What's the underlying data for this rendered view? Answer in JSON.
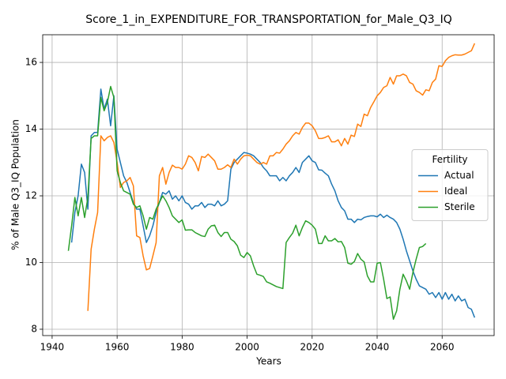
{
  "chart_data": {
    "type": "line",
    "title": "Score_1_in_EXPENDITURE_FOR_TRANSPORTATION_for_Male_Q3_IQ",
    "x_label": "Years",
    "y_label": "% of Male Q3_IQ Population",
    "legend_title": "Fertility",
    "legend_position": "center right",
    "grid": true,
    "xlim": [
      1937.1,
      2076
    ],
    "ylim": [
      7.81,
      16.83
    ],
    "xticks": [
      1940,
      1960,
      1980,
      2000,
      2020,
      2040,
      2060
    ],
    "yticks": [
      8,
      10,
      12,
      14,
      16
    ],
    "x": [
      1945,
      1946,
      1947,
      1948,
      1949,
      1950,
      1951,
      1952,
      1953,
      1954,
      1955,
      1956,
      1957,
      1958,
      1959,
      1960,
      1961,
      1962,
      1963,
      1964,
      1965,
      1966,
      1967,
      1968,
      1969,
      1970,
      1971,
      1972,
      1973,
      1974,
      1975,
      1976,
      1977,
      1978,
      1979,
      1980,
      1981,
      1982,
      1983,
      1984,
      1985,
      1986,
      1987,
      1988,
      1989,
      1990,
      1991,
      1992,
      1993,
      1994,
      1995,
      1996,
      1997,
      1998,
      1999,
      2000,
      2001,
      2002,
      2003,
      2004,
      2005,
      2006,
      2007,
      2008,
      2009,
      2010,
      2011,
      2012,
      2013,
      2014,
      2015,
      2016,
      2017,
      2018,
      2019,
      2020,
      2021,
      2022,
      2023,
      2024,
      2025,
      2026,
      2027,
      2028,
      2029,
      2030,
      2031,
      2032,
      2033,
      2034,
      2035,
      2036,
      2037,
      2038,
      2039,
      2040,
      2041,
      2042,
      2043,
      2044,
      2045,
      2046,
      2047,
      2048,
      2049,
      2050,
      2051,
      2052,
      2053,
      2054,
      2055,
      2056,
      2057,
      2058,
      2059,
      2060,
      2061,
      2062,
      2063,
      2064,
      2065,
      2066,
      2067,
      2068,
      2069,
      2070
    ],
    "series": [
      {
        "name": "Actual",
        "color": "#1f77b4",
        "values": [
          null,
          10.6,
          11.5,
          12.0,
          12.95,
          12.7,
          11.6,
          13.8,
          13.9,
          13.9,
          15.2,
          14.6,
          14.9,
          14.1,
          15.0,
          13.4,
          13.0,
          12.6,
          12.4,
          12.1,
          11.8,
          11.6,
          11.6,
          11.1,
          10.6,
          10.8,
          11.1,
          11.5,
          11.8,
          12.1,
          12.05,
          12.15,
          11.9,
          12.0,
          11.85,
          12.0,
          11.8,
          11.75,
          11.6,
          11.7,
          11.7,
          11.8,
          11.65,
          11.75,
          11.75,
          11.7,
          11.85,
          11.7,
          11.75,
          11.85,
          12.8,
          13.0,
          13.1,
          13.2,
          13.3,
          13.28,
          13.25,
          13.2,
          13.1,
          13.0,
          12.85,
          12.75,
          12.6,
          12.6,
          12.6,
          12.45,
          12.55,
          12.45,
          12.6,
          12.7,
          12.85,
          12.7,
          13.0,
          13.1,
          13.2,
          13.05,
          13.0,
          12.78,
          12.77,
          12.68,
          12.6,
          12.35,
          12.15,
          11.85,
          11.65,
          11.55,
          11.3,
          11.3,
          11.2,
          11.3,
          11.28,
          11.35,
          11.38,
          11.4,
          11.4,
          11.37,
          11.45,
          11.35,
          11.42,
          11.35,
          11.3,
          11.2,
          11.0,
          10.7,
          10.35,
          10.05,
          9.75,
          9.5,
          9.3,
          9.25,
          9.2,
          9.05,
          9.1,
          8.95,
          9.1,
          8.9,
          9.1,
          8.9,
          9.05,
          8.85,
          9.0,
          8.85,
          8.9,
          8.65,
          8.6,
          8.35
        ]
      },
      {
        "name": "Ideal",
        "color": "#ff7f0e",
        "values": [
          null,
          null,
          null,
          null,
          null,
          null,
          8.55,
          10.4,
          11.0,
          11.5,
          13.8,
          13.65,
          13.75,
          13.8,
          13.6,
          13.0,
          12.25,
          12.4,
          12.45,
          12.55,
          12.3,
          10.8,
          10.75,
          10.2,
          9.78,
          9.82,
          10.2,
          10.6,
          12.6,
          12.85,
          12.35,
          12.7,
          12.92,
          12.85,
          12.85,
          12.8,
          12.95,
          13.2,
          13.15,
          13.0,
          12.75,
          13.18,
          13.15,
          13.25,
          13.15,
          13.05,
          12.8,
          12.8,
          12.85,
          12.93,
          12.85,
          13.1,
          12.95,
          13.1,
          13.2,
          13.22,
          13.2,
          13.1,
          13.0,
          12.95,
          13.0,
          12.95,
          13.2,
          13.2,
          13.3,
          13.28,
          13.4,
          13.55,
          13.65,
          13.8,
          13.9,
          13.85,
          14.05,
          14.18,
          14.18,
          14.1,
          13.95,
          13.72,
          13.72,
          13.75,
          13.8,
          13.62,
          13.62,
          13.68,
          13.5,
          13.72,
          13.55,
          13.82,
          13.78,
          14.15,
          14.08,
          14.45,
          14.4,
          14.65,
          14.82,
          15.0,
          15.1,
          15.25,
          15.3,
          15.55,
          15.35,
          15.6,
          15.6,
          15.65,
          15.6,
          15.4,
          15.35,
          15.15,
          15.1,
          15.02,
          15.18,
          15.15,
          15.4,
          15.5,
          15.9,
          15.88,
          16.05,
          16.15,
          16.2,
          16.23,
          16.22,
          16.22,
          16.25,
          16.3,
          16.35,
          16.57
        ]
      },
      {
        "name": "Sterile",
        "color": "#2ca02c",
        "values": [
          10.35,
          11.1,
          11.95,
          11.4,
          11.95,
          11.35,
          11.95,
          13.72,
          13.8,
          13.8,
          14.95,
          14.55,
          14.8,
          15.28,
          14.95,
          12.75,
          12.4,
          12.15,
          12.1,
          12.05,
          11.75,
          11.65,
          11.7,
          11.4,
          11.0,
          11.35,
          11.3,
          11.6,
          11.8,
          12.0,
          11.85,
          11.65,
          11.4,
          11.3,
          11.2,
          11.28,
          10.97,
          10.98,
          10.98,
          10.9,
          10.85,
          10.8,
          10.78,
          11.0,
          11.1,
          11.12,
          10.9,
          10.78,
          10.9,
          10.9,
          10.7,
          10.63,
          10.5,
          10.22,
          10.15,
          10.3,
          10.2,
          9.9,
          9.65,
          9.62,
          9.58,
          9.42,
          9.38,
          9.33,
          9.28,
          9.25,
          9.22,
          10.6,
          10.75,
          10.88,
          11.12,
          10.8,
          11.05,
          11.25,
          11.2,
          11.12,
          11.0,
          10.57,
          10.57,
          10.8,
          10.65,
          10.65,
          10.72,
          10.62,
          10.63,
          10.45,
          9.98,
          9.95,
          10.03,
          10.27,
          10.1,
          10.02,
          9.6,
          9.42,
          9.42,
          9.98,
          10.0,
          9.5,
          8.92,
          8.97,
          8.3,
          8.55,
          9.2,
          9.65,
          9.45,
          9.2,
          9.7,
          10.1,
          10.45,
          10.48,
          10.57,
          null,
          null,
          null,
          null,
          null,
          null,
          null,
          null,
          null,
          null,
          null,
          null,
          null,
          null,
          null
        ]
      }
    ]
  }
}
